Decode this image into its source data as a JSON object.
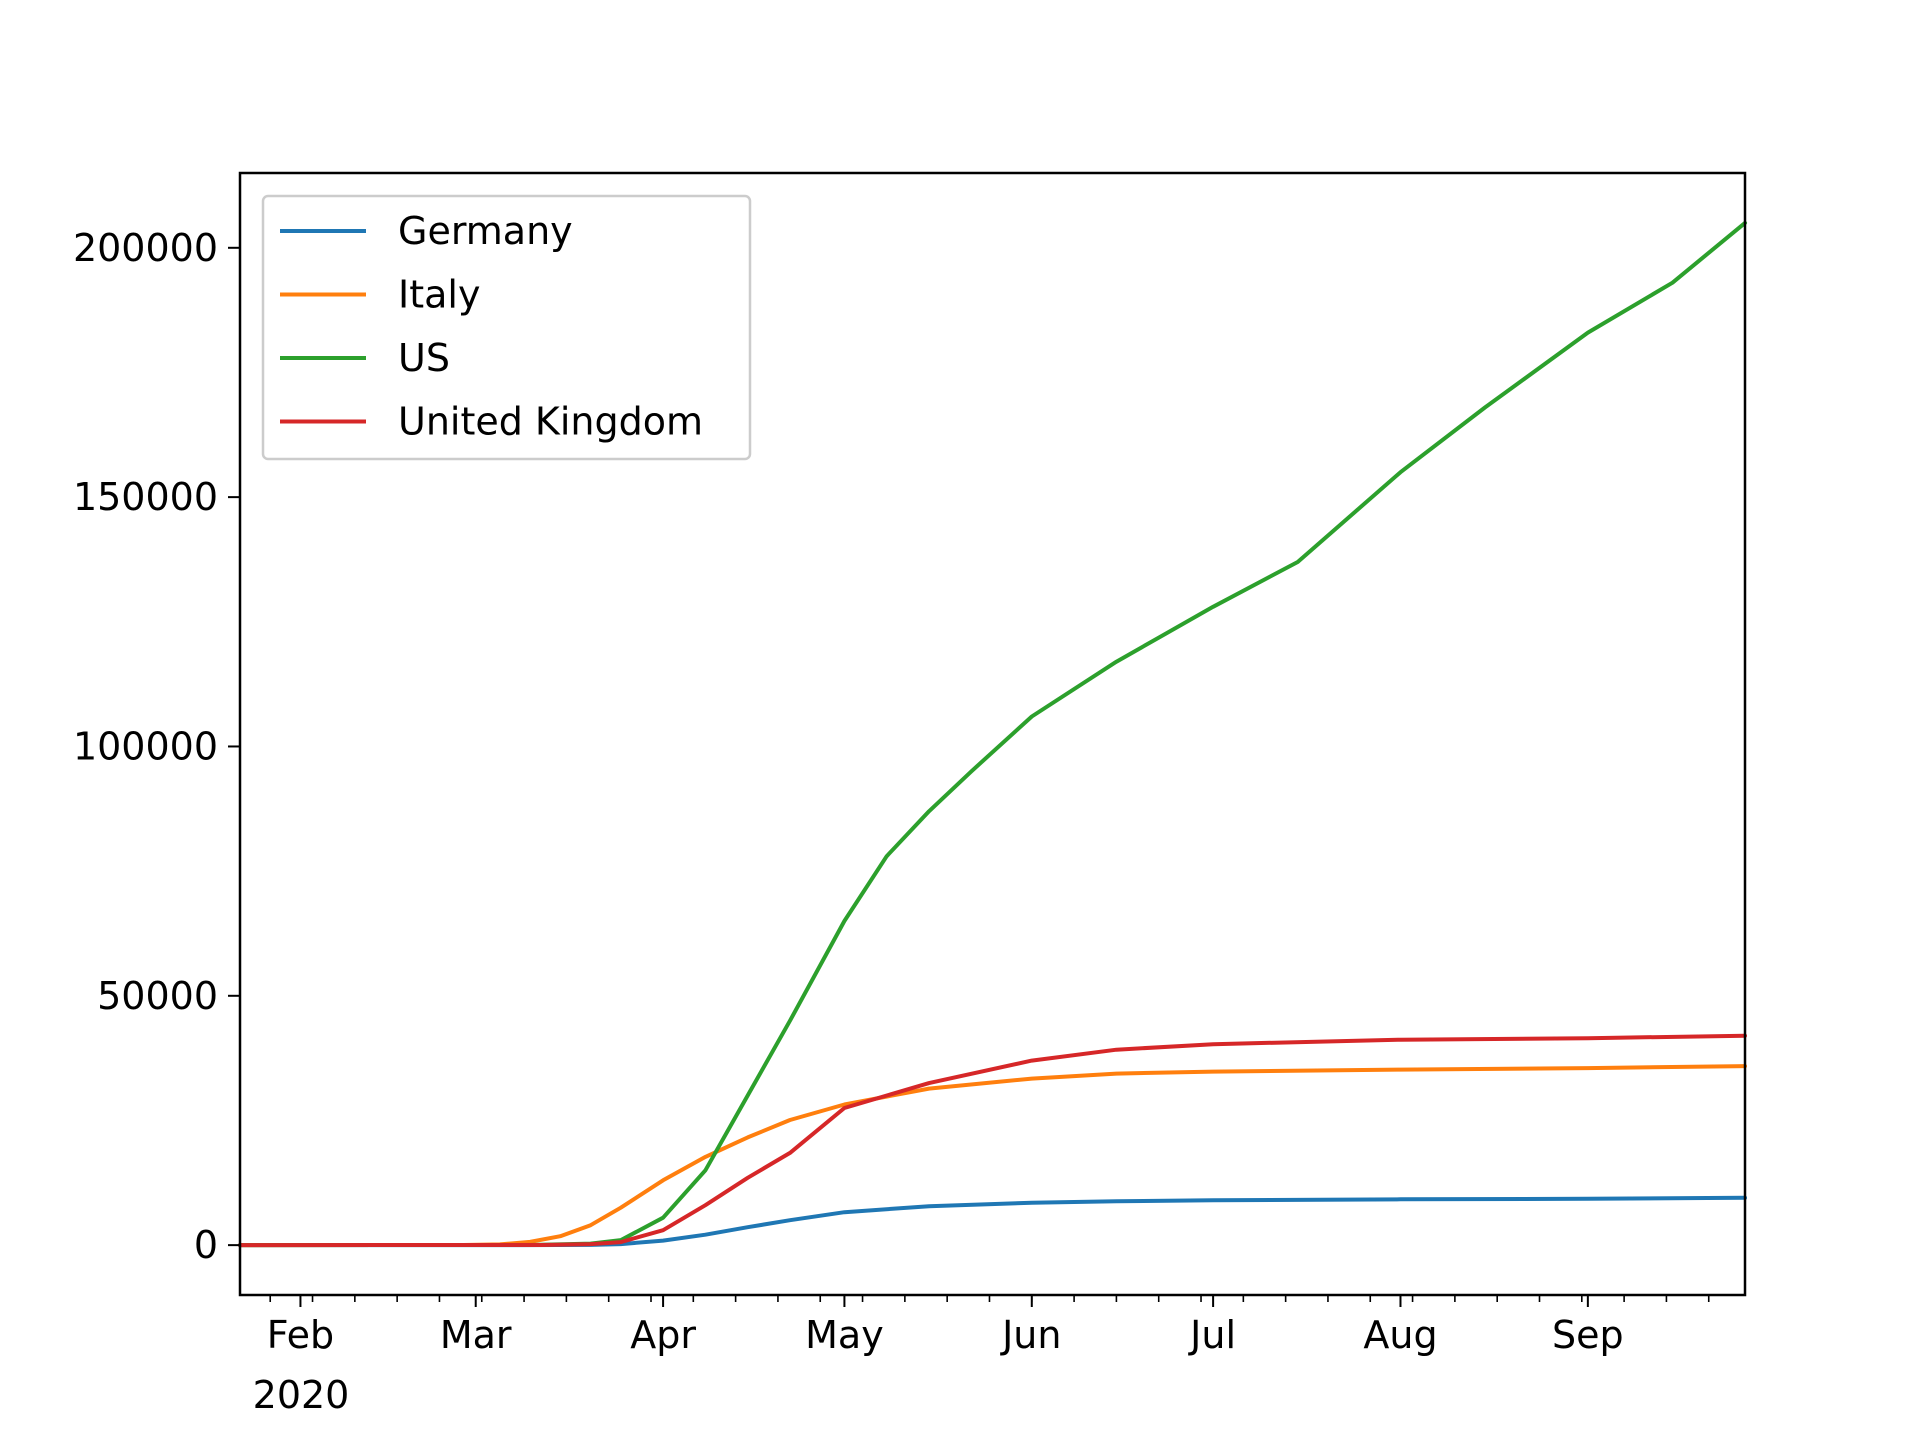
{
  "chart_data": {
    "type": "line",
    "title": "",
    "xlabel": "",
    "ylabel": "",
    "x_tick_labels": [
      "Feb",
      "Mar",
      "Apr",
      "May",
      "Jun",
      "Jul",
      "Aug",
      "Sep"
    ],
    "x_tick_dates": [
      "2020-02-01",
      "2020-03-01",
      "2020-04-01",
      "2020-05-01",
      "2020-06-01",
      "2020-07-01",
      "2020-08-01",
      "2020-09-01"
    ],
    "x_year_label": "2020",
    "xlim": [
      "2020-01-22",
      "2020-09-27"
    ],
    "y_ticks": [
      0,
      50000,
      100000,
      150000,
      200000
    ],
    "y_tick_labels": [
      "0",
      "50000",
      "100000",
      "150000",
      "200000"
    ],
    "ylim": [
      -10000,
      215000
    ],
    "grid": false,
    "legend_position": "upper-left",
    "series": [
      {
        "name": "Germany",
        "color": "#1f77b4",
        "points": [
          [
            "2020-01-22",
            0
          ],
          [
            "2020-03-09",
            0
          ],
          [
            "2020-03-20",
            50
          ],
          [
            "2020-03-25",
            200
          ],
          [
            "2020-04-01",
            900
          ],
          [
            "2020-04-08",
            2100
          ],
          [
            "2020-04-15",
            3600
          ],
          [
            "2020-04-22",
            5000
          ],
          [
            "2020-05-01",
            6600
          ],
          [
            "2020-05-15",
            7800
          ],
          [
            "2020-06-01",
            8500
          ],
          [
            "2020-06-15",
            8800
          ],
          [
            "2020-07-01",
            9000
          ],
          [
            "2020-08-01",
            9200
          ],
          [
            "2020-09-01",
            9300
          ],
          [
            "2020-09-27",
            9500
          ]
        ]
      },
      {
        "name": "Italy",
        "color": "#ff7f0e",
        "points": [
          [
            "2020-01-22",
            0
          ],
          [
            "2020-02-28",
            20
          ],
          [
            "2020-03-05",
            150
          ],
          [
            "2020-03-10",
            650
          ],
          [
            "2020-03-15",
            1800
          ],
          [
            "2020-03-20",
            4000
          ],
          [
            "2020-03-25",
            7500
          ],
          [
            "2020-04-01",
            13000
          ],
          [
            "2020-04-08",
            17700
          ],
          [
            "2020-04-15",
            21600
          ],
          [
            "2020-04-22",
            25100
          ],
          [
            "2020-05-01",
            28200
          ],
          [
            "2020-05-15",
            31400
          ],
          [
            "2020-06-01",
            33400
          ],
          [
            "2020-06-15",
            34400
          ],
          [
            "2020-07-01",
            34800
          ],
          [
            "2020-08-01",
            35200
          ],
          [
            "2020-09-01",
            35500
          ],
          [
            "2020-09-27",
            35900
          ]
        ]
      },
      {
        "name": "US",
        "color": "#2ca02c",
        "points": [
          [
            "2020-01-22",
            0
          ],
          [
            "2020-03-10",
            30
          ],
          [
            "2020-03-20",
            300
          ],
          [
            "2020-03-25",
            1000
          ],
          [
            "2020-04-01",
            5500
          ],
          [
            "2020-04-08",
            15000
          ],
          [
            "2020-04-15",
            30000
          ],
          [
            "2020-04-22",
            45000
          ],
          [
            "2020-05-01",
            65000
          ],
          [
            "2020-05-08",
            78000
          ],
          [
            "2020-05-15",
            87000
          ],
          [
            "2020-05-22",
            95000
          ],
          [
            "2020-06-01",
            106000
          ],
          [
            "2020-06-15",
            117000
          ],
          [
            "2020-07-01",
            128000
          ],
          [
            "2020-07-15",
            137000
          ],
          [
            "2020-08-01",
            155000
          ],
          [
            "2020-08-15",
            168000
          ],
          [
            "2020-09-01",
            183000
          ],
          [
            "2020-09-15",
            193000
          ],
          [
            "2020-09-27",
            205000
          ]
        ]
      },
      {
        "name": "United Kingdom",
        "color": "#d62728",
        "points": [
          [
            "2020-01-22",
            0
          ],
          [
            "2020-03-12",
            20
          ],
          [
            "2020-03-20",
            200
          ],
          [
            "2020-03-25",
            600
          ],
          [
            "2020-04-01",
            3000
          ],
          [
            "2020-04-08",
            8000
          ],
          [
            "2020-04-15",
            13500
          ],
          [
            "2020-04-22",
            18500
          ],
          [
            "2020-05-01",
            27500
          ],
          [
            "2020-05-15",
            32500
          ],
          [
            "2020-06-01",
            37000
          ],
          [
            "2020-06-15",
            39200
          ],
          [
            "2020-07-01",
            40300
          ],
          [
            "2020-08-01",
            41200
          ],
          [
            "2020-09-01",
            41500
          ],
          [
            "2020-09-27",
            42000
          ]
        ]
      }
    ]
  }
}
